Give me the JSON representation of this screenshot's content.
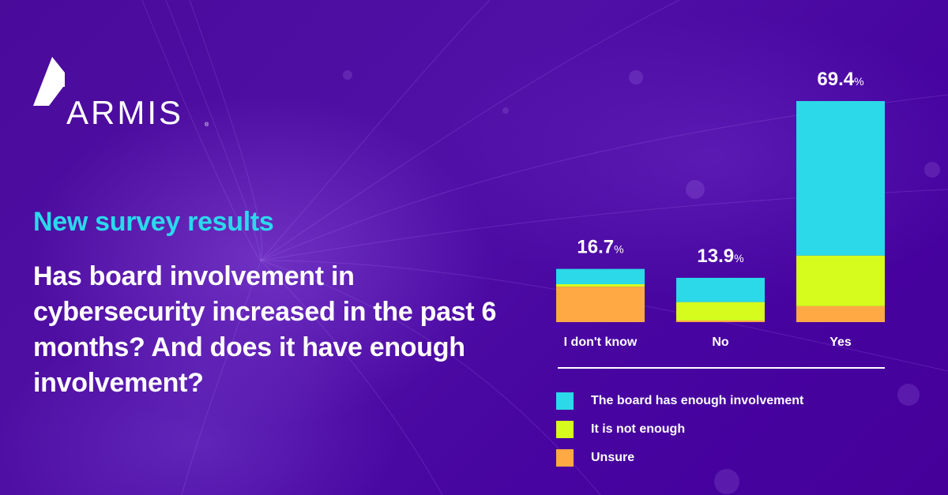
{
  "brand": {
    "name": "ARMIS",
    "registered": "®"
  },
  "headline": {
    "subtitle": "New survey results",
    "question": "Has board involvement in cybersecurity increased in the past 6 months? And does it have enough involvement?"
  },
  "colors": {
    "background": "#4a0099",
    "accent": "#2bd9ec",
    "enough": "#2bd9e8",
    "not_enough": "#d6fc1e",
    "unsure": "#fea944"
  },
  "chart_data": {
    "type": "bar",
    "stacked": true,
    "title": "Has board involvement in cybersecurity increased in the past 6 months? And does it have enough involvement?",
    "xlabel": "",
    "ylabel": "",
    "ylim": [
      0,
      69.4
    ],
    "grid": false,
    "categories": [
      "I don't know",
      "No",
      "Yes"
    ],
    "totals": [
      16.7,
      13.9,
      69.4
    ],
    "total_labels": [
      "16.7",
      "13.9",
      "69.4"
    ],
    "unit": "%",
    "series": [
      {
        "name": "The board has enough involvement",
        "color": "#2bd9e8",
        "values": [
          4.8,
          7.6,
          48.5
        ]
      },
      {
        "name": "It is not enough",
        "color": "#d6fc1e",
        "values": [
          0.8,
          5.8,
          15.9
        ]
      },
      {
        "name": "Unsure",
        "color": "#fea944",
        "values": [
          11.1,
          0.5,
          5.0
        ]
      }
    ],
    "legend": {
      "placement": "bottom",
      "entries": [
        "The board has enough involvement",
        "It is not enough",
        "Unsure"
      ]
    }
  }
}
